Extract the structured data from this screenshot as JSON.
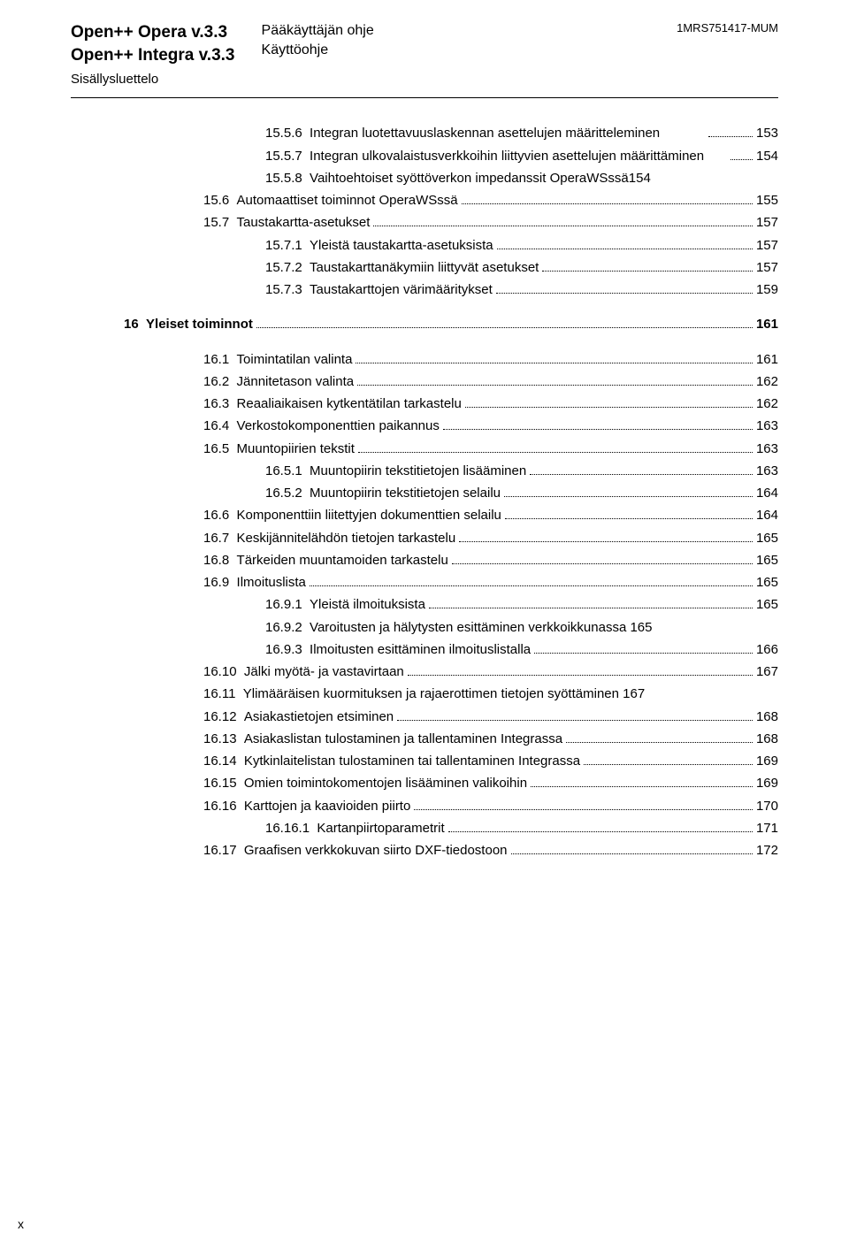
{
  "header": {
    "left_line1": "Open++ Opera v.3.3",
    "left_line2": "Open++ Integra v.3.3",
    "center_line1": "Pääkäyttäjän ohje",
    "center_line2": "Käyttöohje",
    "right": "1MRS751417-MUM",
    "subhead": "Sisällysluettelo"
  },
  "toc": [
    {
      "lvl": "lvl2",
      "num": "15.5.6",
      "label": "Integran luotettavuuslaskennan asettelujen määritteleminen",
      "wrap": true,
      "pg": "153"
    },
    {
      "lvl": "lvl2",
      "num": "15.5.7",
      "label": "Integran ulkovalaistusverkkoihin liittyvien asettelujen määrittäminen",
      "wrap": true,
      "pg": "154"
    },
    {
      "lvl": "lvl2",
      "num": "15.5.8",
      "label": "Vaihtoehtoiset syöttöverkon impedanssit OperaWSssä154",
      "pg": "",
      "nodots": true
    },
    {
      "lvl": "lvl1",
      "num": "15.6",
      "label": "Automaattiset toiminnot OperaWSssä",
      "pg": "155"
    },
    {
      "lvl": "lvl1",
      "num": "15.7",
      "label": "Taustakartta-asetukset",
      "pg": "157"
    },
    {
      "lvl": "lvl2",
      "num": "15.7.1",
      "label": "Yleistä taustakartta-asetuksista",
      "pg": "157"
    },
    {
      "lvl": "lvl2",
      "num": "15.7.2",
      "label": "Taustakarttanäkymiin liittyvät asetukset",
      "pg": "157"
    },
    {
      "lvl": "lvl2",
      "num": "15.7.3",
      "label": "Taustakarttojen värimääritykset",
      "pg": "159"
    },
    {
      "gap": true
    },
    {
      "lvl": "lvlH",
      "num": "16",
      "label": "Yleiset toiminnot",
      "pg": "161",
      "bold": true
    },
    {
      "gap": true
    },
    {
      "lvl": "lvl1",
      "num": "16.1",
      "label": "Toimintatilan valinta",
      "pg": "161"
    },
    {
      "lvl": "lvl1",
      "num": "16.2",
      "label": "Jännitetason valinta",
      "pg": "162"
    },
    {
      "lvl": "lvl1",
      "num": "16.3",
      "label": "Reaaliaikaisen kytkentätilan tarkastelu",
      "pg": "162"
    },
    {
      "lvl": "lvl1",
      "num": "16.4",
      "label": "Verkostokomponenttien paikannus",
      "pg": "163"
    },
    {
      "lvl": "lvl1",
      "num": "16.5",
      "label": "Muuntopiirien tekstit",
      "pg": "163"
    },
    {
      "lvl": "lvl2",
      "num": "16.5.1",
      "label": "Muuntopiirin tekstitietojen lisääminen",
      "pg": "163"
    },
    {
      "lvl": "lvl2",
      "num": "16.5.2",
      "label": "Muuntopiirin tekstitietojen selailu",
      "pg": "164"
    },
    {
      "lvl": "lvl1",
      "num": "16.6",
      "label": "Komponenttiin liitettyjen dokumenttien selailu",
      "pg": "164"
    },
    {
      "lvl": "lvl1",
      "num": "16.7",
      "label": "Keskijännitelähdön tietojen tarkastelu",
      "pg": "165"
    },
    {
      "lvl": "lvl1",
      "num": "16.8",
      "label": "Tärkeiden muuntamoiden tarkastelu",
      "pg": "165"
    },
    {
      "lvl": "lvl1",
      "num": "16.9",
      "label": "Ilmoituslista",
      "pg": "165"
    },
    {
      "lvl": "lvl2",
      "num": "16.9.1",
      "label": "Yleistä ilmoituksista",
      "pg": "165"
    },
    {
      "lvl": "lvl2",
      "num": "16.9.2",
      "label": "Varoitusten ja hälytysten esittäminen verkkoikkunassa 165",
      "pg": "",
      "nodots": true
    },
    {
      "lvl": "lvl2",
      "num": "16.9.3",
      "label": "Ilmoitusten esittäminen ilmoituslistalla",
      "pg": "166"
    },
    {
      "lvl": "lvl1",
      "num": "16.10",
      "label": "Jälki myötä- ja vastavirtaan",
      "pg": "167"
    },
    {
      "lvl": "lvl1",
      "num": "16.11",
      "label": "Ylimääräisen kuormituksen ja rajaerottimen tietojen syöttäminen 167",
      "pg": "",
      "nodots": true,
      "wrap": true
    },
    {
      "lvl": "lvl1",
      "num": "16.12",
      "label": "Asiakastietojen etsiminen",
      "pg": "168"
    },
    {
      "lvl": "lvl1",
      "num": "16.13",
      "label": "Asiakaslistan tulostaminen ja tallentaminen Integrassa",
      "pg": "168"
    },
    {
      "lvl": "lvl1",
      "num": "16.14",
      "label": "Kytkinlaitelistan tulostaminen tai tallentaminen Integrassa",
      "pg": "169"
    },
    {
      "lvl": "lvl1",
      "num": "16.15",
      "label": "Omien toimintokomentojen lisääminen valikoihin",
      "pg": "169"
    },
    {
      "lvl": "lvl1",
      "num": "16.16",
      "label": "Karttojen ja kaavioiden piirto",
      "pg": "170"
    },
    {
      "lvl": "lvl2",
      "num": "16.16.1",
      "label": "Kartanpiirtoparametrit",
      "pg": "171"
    },
    {
      "lvl": "lvl1",
      "num": "16.17",
      "label": "Graafisen verkkokuvan siirto DXF-tiedostoon",
      "pg": "172"
    }
  ],
  "footer": {
    "x": "x"
  }
}
